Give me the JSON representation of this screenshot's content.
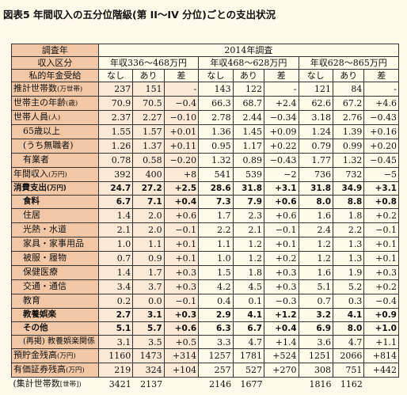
{
  "title": "図表5 年間収入の五分位階級(第 II～IV 分位)ごとの支出状況",
  "header": {
    "survey_year_label": "調査年",
    "survey_year_value": "2014年調査",
    "income_class_label": "収入区分",
    "income_classes": [
      "年収336～468万円",
      "年収468～628万円",
      "年収628～865万円"
    ],
    "pension_label": "私的年金受給",
    "pension_cols": [
      "なし",
      "あり",
      "差"
    ]
  },
  "rows": [
    {
      "label": "推計世帯数",
      "unit": "(万世帯)",
      "values": [
        "237",
        "151",
        "-",
        "143",
        "122",
        "-",
        "121",
        "84",
        "-"
      ]
    },
    {
      "label": "世帯主の年齢",
      "unit": "(歳)",
      "values": [
        "70.9",
        "70.5",
        "−0.4",
        "66.3",
        "68.7",
        "+2.4",
        "62.6",
        "67.2",
        "+4.6"
      ]
    },
    {
      "label": "世帯人員",
      "unit": "(人)",
      "values": [
        "2.37",
        "2.27",
        "−0.10",
        "2.78",
        "2.44",
        "−0.34",
        "3.18",
        "2.76",
        "−0.43"
      ]
    },
    {
      "label": "65歳以上",
      "unit": "",
      "values": [
        "1.55",
        "1.57",
        "+0.01",
        "1.36",
        "1.45",
        "+0.09",
        "1.24",
        "1.39",
        "+0.16"
      ]
    },
    {
      "label": "(うち無職者)",
      "unit": "",
      "values": [
        "1.26",
        "1.37",
        "+0.11",
        "0.95",
        "1.17",
        "+0.22",
        "0.79",
        "0.99",
        "+0.20"
      ]
    },
    {
      "label": "有業者",
      "unit": "",
      "values": [
        "0.78",
        "0.58",
        "−0.20",
        "1.32",
        "0.89",
        "−0.43",
        "1.77",
        "1.32",
        "−0.45"
      ]
    },
    {
      "label": "年間収入",
      "unit": "(万円)",
      "values": [
        "392",
        "400",
        "+8",
        "541",
        "539",
        "−2",
        "736",
        "732",
        "−5"
      ]
    },
    {
      "label": "消費支出",
      "unit": "(万円)",
      "values": [
        "24.7",
        "27.2",
        "+2.5",
        "28.6",
        "31.8",
        "+3.1",
        "31.8",
        "34.9",
        "+3.1"
      ]
    },
    {
      "label": "食料",
      "unit": "",
      "values": [
        "6.7",
        "7.1",
        "+0.4",
        "7.3",
        "7.9",
        "+0.6",
        "8.0",
        "8.8",
        "+0.8"
      ]
    },
    {
      "label": "住居",
      "unit": "",
      "values": [
        "1.4",
        "2.0",
        "+0.6",
        "1.7",
        "2.3",
        "+0.6",
        "1.6",
        "1.8",
        "+0.2"
      ]
    },
    {
      "label": "光熱・水道",
      "unit": "",
      "values": [
        "2.1",
        "2.0",
        "−0.1",
        "2.2",
        "2.1",
        "−0.1",
        "2.4",
        "2.2",
        "−0.1"
      ]
    },
    {
      "label": "家具・家事用品",
      "unit": "",
      "values": [
        "1.0",
        "1.1",
        "+0.1",
        "1.1",
        "1.2",
        "+0.1",
        "1.2",
        "1.3",
        "+0.1"
      ]
    },
    {
      "label": "被服・履物",
      "unit": "",
      "values": [
        "0.7",
        "0.9",
        "+0.1",
        "1.0",
        "1.2",
        "+0.2",
        "1.2",
        "1.3",
        "+0.1"
      ]
    },
    {
      "label": "保健医療",
      "unit": "",
      "values": [
        "1.4",
        "1.7",
        "+0.3",
        "1.5",
        "1.8",
        "+0.3",
        "1.6",
        "1.9",
        "+0.3"
      ]
    },
    {
      "label": "交通・通信",
      "unit": "",
      "values": [
        "3.4",
        "3.7",
        "+0.3",
        "4.2",
        "4.5",
        "+0.3",
        "5.1",
        "5.2",
        "+0.2"
      ]
    },
    {
      "label": "教育",
      "unit": "",
      "values": [
        "0.2",
        "0.0",
        "−0.1",
        "0.4",
        "0.1",
        "−0.3",
        "0.7",
        "0.3",
        "−0.4"
      ]
    },
    {
      "label": "教養娯楽",
      "unit": "",
      "values": [
        "2.7",
        "3.1",
        "+0.3",
        "2.9",
        "4.1",
        "+1.2",
        "3.2",
        "4.1",
        "+0.9"
      ]
    },
    {
      "label": "その他",
      "unit": "",
      "values": [
        "5.1",
        "5.7",
        "+0.6",
        "6.3",
        "6.7",
        "+0.4",
        "6.9",
        "8.0",
        "+1.0"
      ]
    },
    {
      "label": "(再掲) 教養娯楽関係",
      "unit": "",
      "values": [
        "3.1",
        "3.5",
        "+0.5",
        "3.3",
        "4.7",
        "+1.4",
        "3.6",
        "4.7",
        "+1.1"
      ]
    },
    {
      "label": "預貯金残高",
      "unit": "(万円)",
      "values": [
        "1160",
        "1473",
        "+314",
        "1257",
        "1781",
        "+524",
        "1251",
        "2066",
        "+814"
      ]
    },
    {
      "label": "有価証券残高",
      "unit": "(万円)",
      "values": [
        "219",
        "324",
        "+104",
        "257",
        "527",
        "+270",
        "308",
        "751",
        "+442"
      ]
    },
    {
      "label": "(集計世帯数",
      "unit": "[世帯])",
      "values": [
        "3421",
        "2137",
        "",
        "2146",
        "1677",
        "",
        "1816",
        "1162",
        ""
      ]
    }
  ]
}
